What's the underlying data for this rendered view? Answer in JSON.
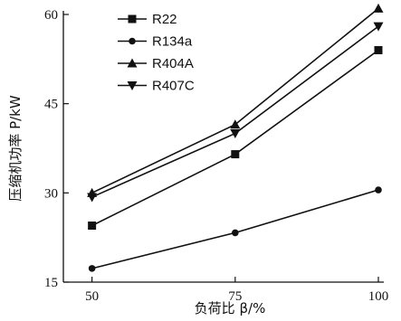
{
  "chart_data": {
    "type": "line",
    "x": [
      50,
      75,
      100
    ],
    "xticks": [
      "50",
      "75",
      "100"
    ],
    "yticks": [
      "15",
      "30",
      "45",
      "60"
    ],
    "xlim": [
      45,
      100
    ],
    "ylim": [
      15,
      60
    ],
    "xlabel": "负荷比 β/%",
    "ylabel": "压缩机功率 P/kW",
    "grid": false,
    "legend": "top-left",
    "series": [
      {
        "name": "R22",
        "marker": "square",
        "values": [
          24.5,
          36.5,
          54.0
        ]
      },
      {
        "name": "R134a",
        "marker": "circle",
        "values": [
          17.3,
          23.3,
          30.5
        ]
      },
      {
        "name": "R404A",
        "marker": "triangle-up",
        "values": [
          30.0,
          41.5,
          61.0
        ]
      },
      {
        "name": "R407C",
        "marker": "triangle-down",
        "values": [
          29.3,
          40.0,
          58.0
        ]
      }
    ],
    "color": "#111111"
  }
}
